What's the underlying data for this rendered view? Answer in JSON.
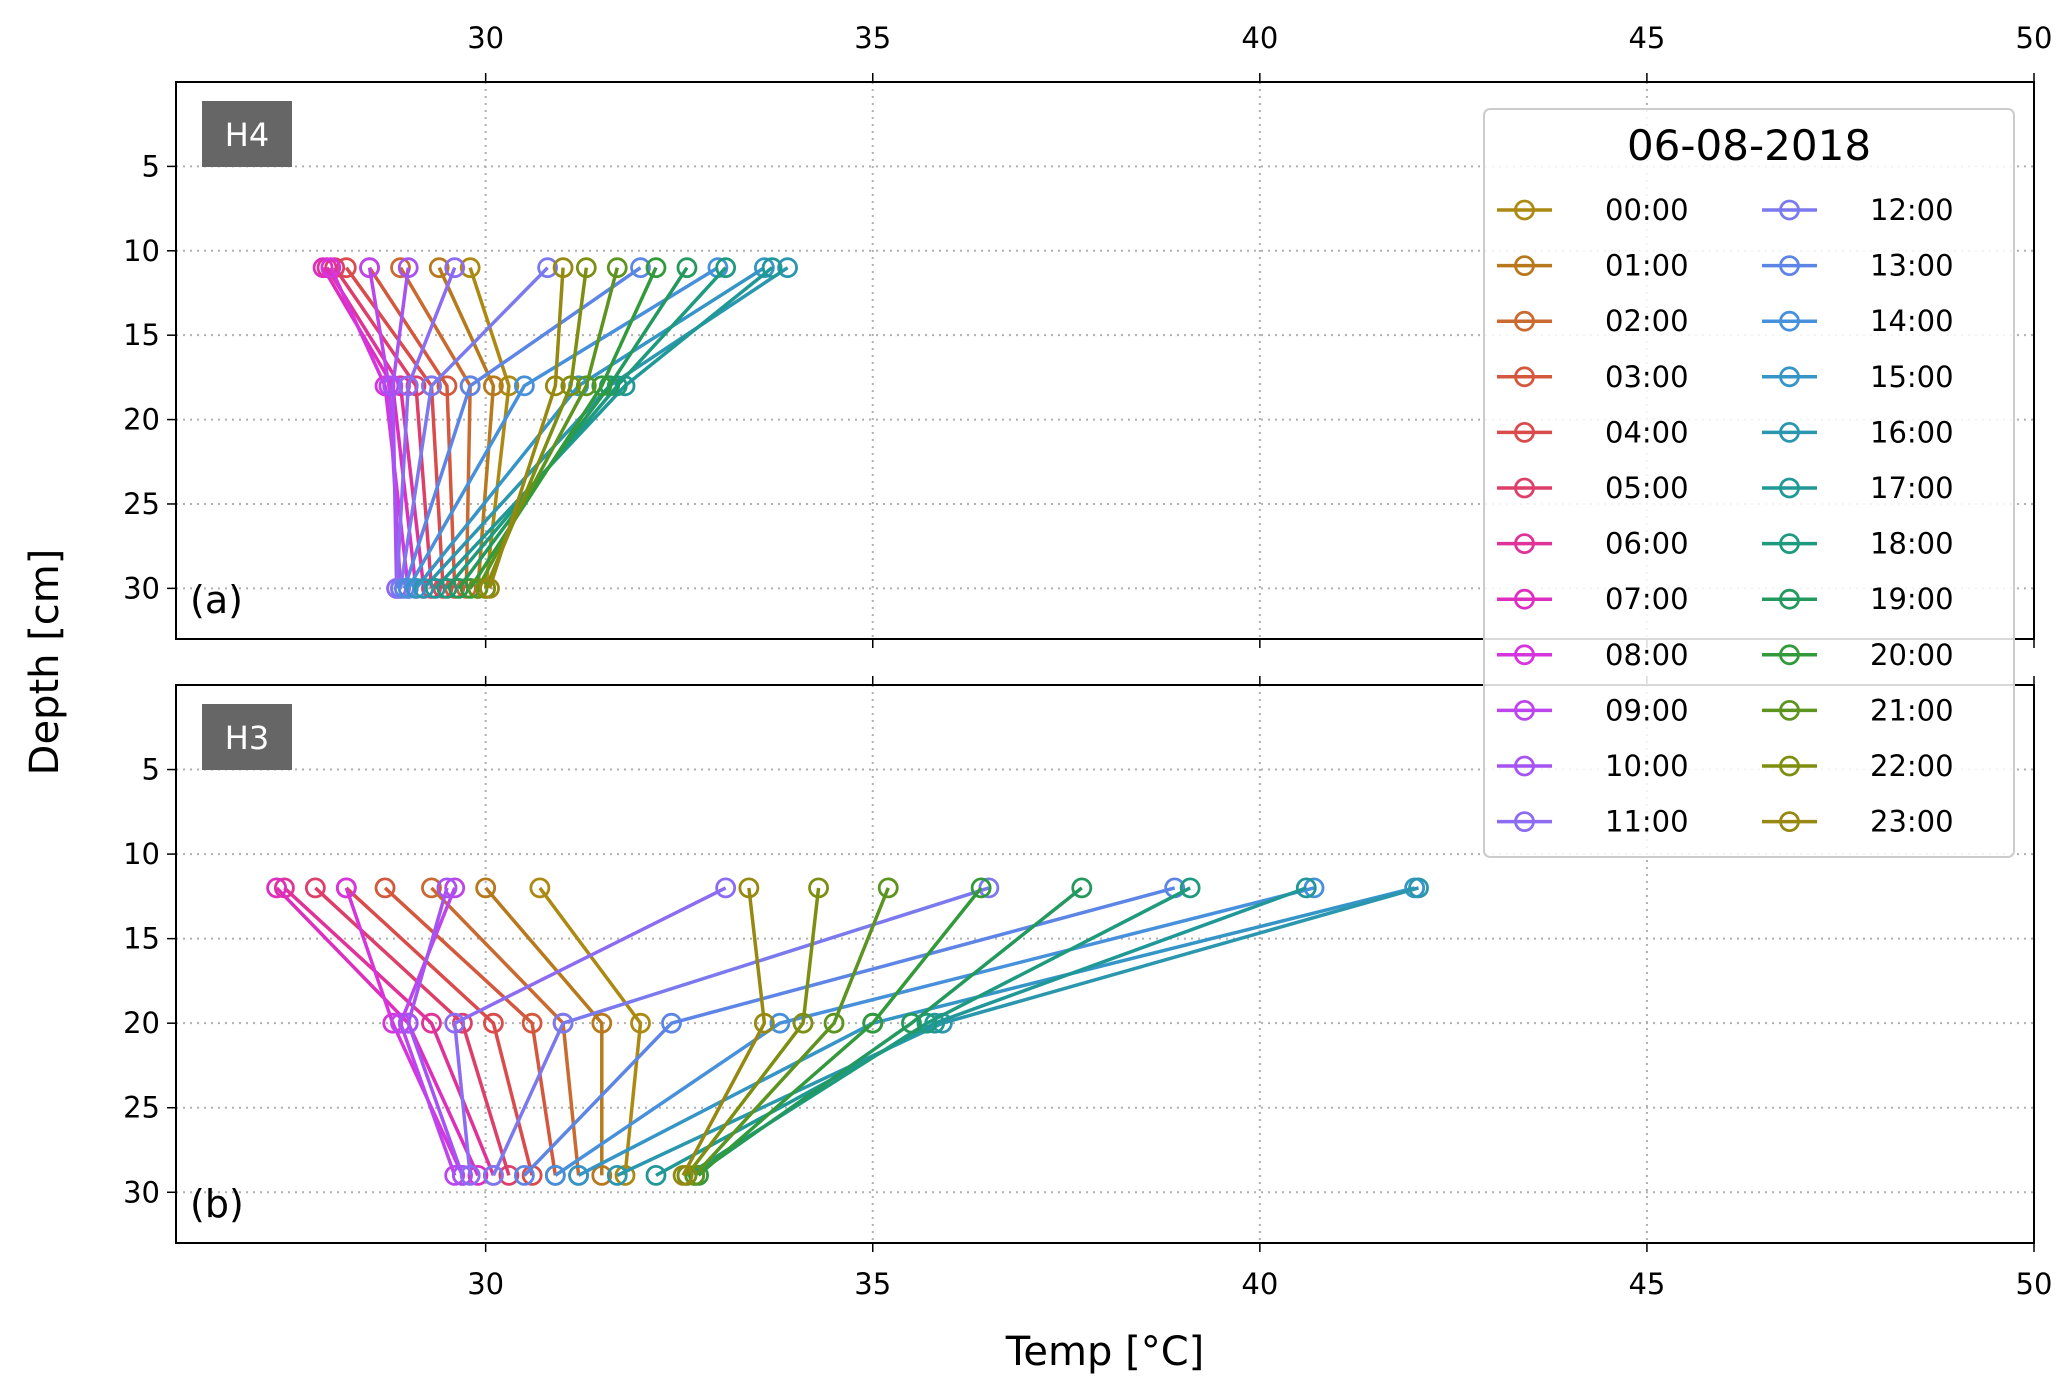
{
  "chart_data": {
    "type": "line",
    "xlabel": "Temp [°C]",
    "ylabel": "Depth [cm]",
    "xlim": [
      26,
      50
    ],
    "ylim": [
      33,
      0
    ],
    "xticks": [
      30,
      35,
      40,
      45,
      50
    ],
    "yticks": [
      5,
      10,
      15,
      20,
      25,
      30
    ],
    "grid": true,
    "legend": {
      "title": "06-08-2018",
      "placement": "top-right",
      "columns": 2,
      "entries": [
        "00:00",
        "01:00",
        "02:00",
        "03:00",
        "04:00",
        "05:00",
        "06:00",
        "07:00",
        "08:00",
        "09:00",
        "10:00",
        "11:00",
        "12:00",
        "13:00",
        "14:00",
        "15:00",
        "16:00",
        "17:00",
        "18:00",
        "19:00",
        "20:00",
        "21:00",
        "22:00",
        "23:00"
      ]
    },
    "colors": [
      "#ac8a12",
      "#b8781c",
      "#c96a30",
      "#d3583e",
      "#da4b4b",
      "#dd3f6a",
      "#df3399",
      "#dd2ec0",
      "#d635dd",
      "#bd45ed",
      "#a553f2",
      "#8b6cf2",
      "#7b79ee",
      "#5c85e6",
      "#4790db",
      "#3595c6",
      "#2b97ae",
      "#219898",
      "#1e9a7e",
      "#23995e",
      "#339a3c",
      "#5d9420",
      "#7e8e10",
      "#968810"
    ],
    "panels": [
      {
        "id": "H4",
        "tag": "(a)",
        "depths": [
          11,
          18,
          30
        ],
        "series": [
          [
            29.8,
            30.3,
            30.0
          ],
          [
            29.4,
            30.1,
            29.9
          ],
          [
            28.9,
            29.8,
            29.75
          ],
          [
            28.5,
            29.5,
            29.6
          ],
          [
            28.2,
            29.3,
            29.45
          ],
          [
            28.05,
            29.1,
            29.3
          ],
          [
            27.95,
            28.9,
            29.2
          ],
          [
            27.9,
            28.8,
            29.1
          ],
          [
            28.0,
            28.7,
            29.0
          ],
          [
            28.5,
            28.75,
            28.9
          ],
          [
            29.0,
            28.8,
            28.85
          ],
          [
            29.6,
            29.0,
            28.85
          ],
          [
            30.8,
            29.3,
            28.9
          ],
          [
            32.0,
            29.8,
            28.95
          ],
          [
            33.0,
            30.5,
            29.0
          ],
          [
            33.6,
            31.2,
            29.1
          ],
          [
            33.9,
            31.6,
            29.2
          ],
          [
            33.7,
            31.8,
            29.35
          ],
          [
            33.1,
            31.7,
            29.5
          ],
          [
            32.6,
            31.6,
            29.65
          ],
          [
            32.2,
            31.5,
            29.8
          ],
          [
            31.7,
            31.3,
            29.9
          ],
          [
            31.3,
            31.1,
            30.0
          ],
          [
            31.0,
            30.9,
            30.05
          ]
        ]
      },
      {
        "id": "H3",
        "tag": "(b)",
        "depths": [
          12,
          20,
          29
        ],
        "series": [
          [
            30.7,
            32.0,
            31.8
          ],
          [
            30.0,
            31.5,
            31.5
          ],
          [
            29.3,
            31.0,
            31.2
          ],
          [
            28.7,
            30.6,
            30.9
          ],
          [
            28.2,
            30.1,
            30.6
          ],
          [
            27.8,
            29.7,
            30.3
          ],
          [
            27.4,
            29.3,
            30.1
          ],
          [
            27.3,
            29.0,
            29.9
          ],
          [
            28.2,
            28.8,
            29.7
          ],
          [
            29.6,
            28.9,
            29.6
          ],
          [
            29.5,
            29.0,
            29.7
          ],
          [
            33.1,
            29.6,
            29.8
          ],
          [
            36.5,
            31.0,
            30.1
          ],
          [
            38.9,
            32.4,
            30.5
          ],
          [
            40.7,
            33.8,
            30.9
          ],
          [
            42.0,
            35.0,
            31.2
          ],
          [
            42.05,
            35.9,
            31.7
          ],
          [
            40.6,
            35.8,
            32.2
          ],
          [
            39.1,
            35.7,
            32.6
          ],
          [
            37.7,
            35.5,
            32.7
          ],
          [
            36.4,
            35.0,
            32.75
          ],
          [
            35.2,
            34.5,
            32.7
          ],
          [
            34.3,
            34.1,
            32.6
          ],
          [
            33.4,
            33.6,
            32.55
          ]
        ]
      }
    ]
  }
}
